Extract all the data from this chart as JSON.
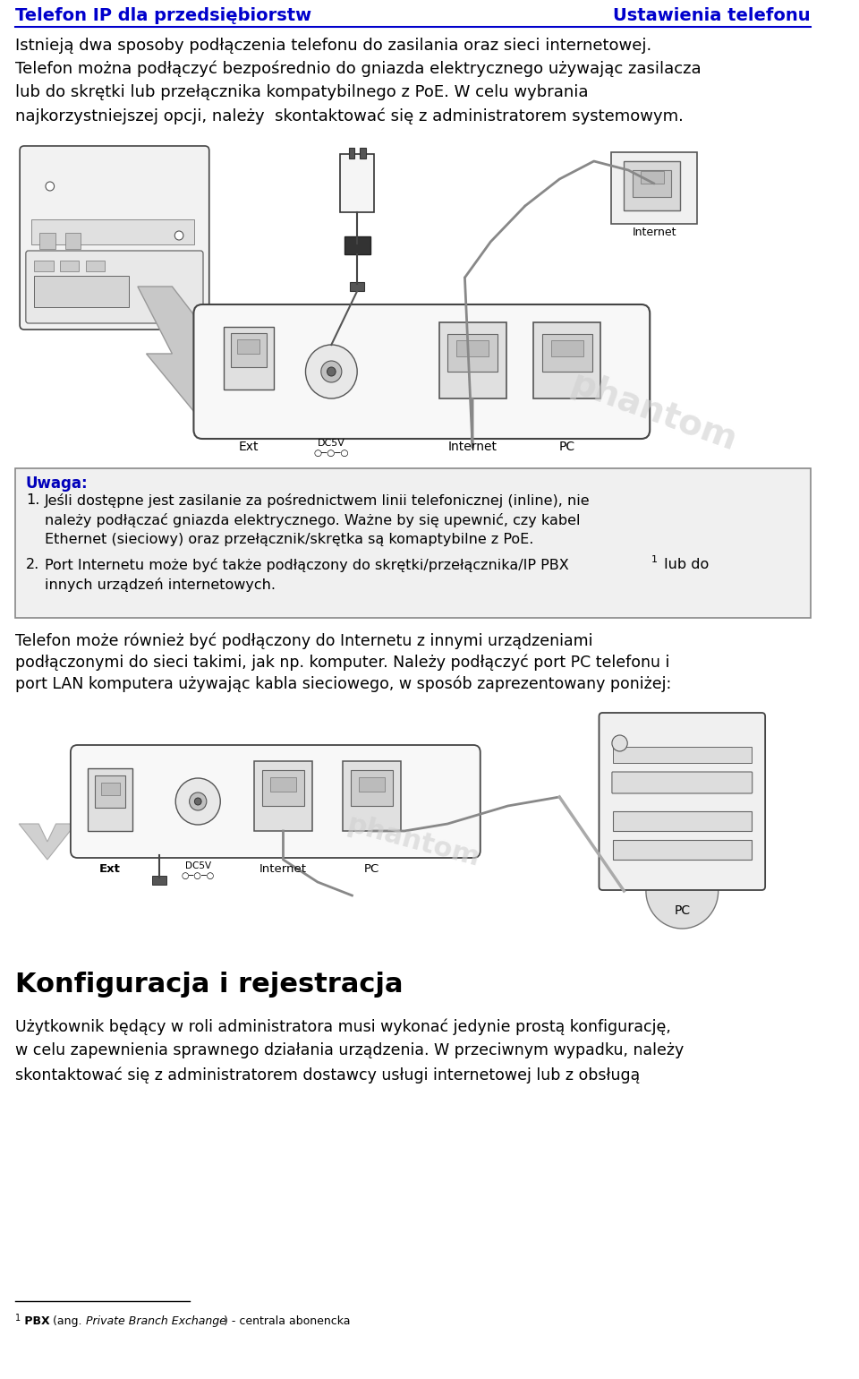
{
  "bg_color": "#ffffff",
  "header_left": "Telefon IP dla przedsiębiorstw",
  "header_right": "Ustawienia telefonu",
  "header_color": "#0000cc",
  "body_font_color": "#000000",
  "body_text_1": "Istnieją dwa sposoby podłączenia telefonu do zasilania oraz sieci internetowej.\nTelefon można podłączyć bezpośrednio do gniazda elektrycznego używając zasilacza\nlub do skrętki lub przełącznika kompatybilnego z PoE. W celu wybrania\nnajkorzystniejszej opcji, należy  skontaktować się z administratorem systemowym.",
  "uwaga_label": "Uwaga:",
  "uwaga_item1_line1": "Jeśli dostępne jest zasilanie za pośrednictwem linii telefonicznej (inline), nie",
  "uwaga_item1_line2": "należy podłączać gniazda elektrycznego. Ważne by się upewnić, czy kabel",
  "uwaga_item1_line3": "Ethernet (sieciowy) oraz przełącznik/skrętka są komaptybilne z PoE.",
  "uwaga_item2_line1": "Port Internetu może być także podłączony do skrętki/przełącznika/IP PBX",
  "uwaga_item2_sup": "1",
  "uwaga_item2_line1b": " lub do",
  "uwaga_item2_line2": "innych urządzeń internetowych.",
  "body_text_3_line1": "Telefon może również być podłączony do Internetu z innymi urządzeniami",
  "body_text_3_line2": "podłączonymi do sieci takimi, jak np. komputer. Należy podłączyć port PC telefonu i",
  "body_text_3_line3": "port LAN komputera używając kabla sieciowego, w sposób zaprezentowany poniżej:",
  "section_title": "Konfiguracja i rejestracja",
  "section_text_line1": "Użytkownik będący w roli administratora musi wykonać jedynie prostą konfigurację,",
  "section_text_line2": "w celu zapewnienia sprawnego działania urządzenia. W przeciwnym wypadku, należy",
  "section_text_line3": "skontaktować się z administratorem dostawcy usługi internetowej lub z obsługą",
  "footnote_sup": "1",
  "footnote_bold": " PBX",
  "footnote_italic": " (ang. Private Branch Exchange)",
  "footnote_normal": " - centrala abonencka",
  "watermark_text": "phantom",
  "label_ext": "Ext",
  "label_dc5v": "DC5V",
  "label_internet": "Internet",
  "label_pc": "PC",
  "label_internet_box": "Internet"
}
